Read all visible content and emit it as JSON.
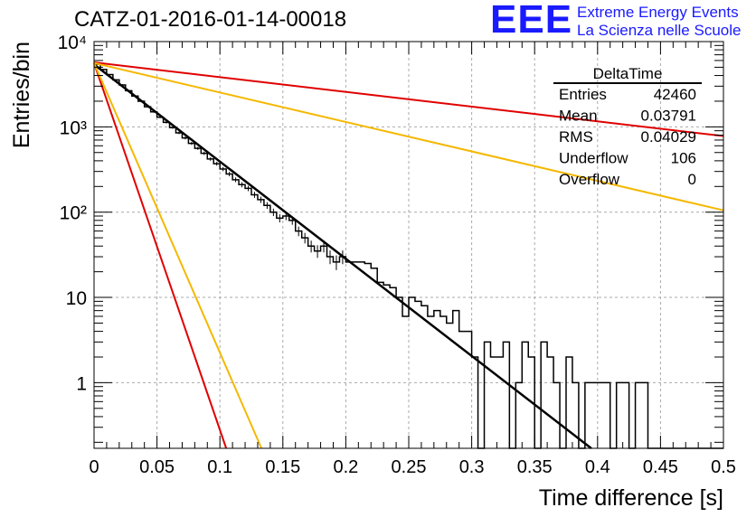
{
  "header": {
    "title": "CATZ-01-2016-01-14-00018"
  },
  "logo": {
    "mark": "EEE",
    "line1": "Extreme Energy Events",
    "line2": "La Scienza nelle Scuole",
    "color": "#1a1aff"
  },
  "stats": {
    "title": "DeltaTime",
    "rows": [
      {
        "label": "Entries",
        "value": "42460"
      },
      {
        "label": "Mean",
        "value": "0.03791"
      },
      {
        "label": "RMS",
        "value": "0.04029"
      },
      {
        "label": "Underflow",
        "value": "106"
      },
      {
        "label": "Overflow",
        "value": "0"
      }
    ]
  },
  "chart_data": {
    "type": "line",
    "title": "CATZ-01-2016-01-14-00018",
    "xlabel": "Time difference [s]",
    "ylabel": "Entries/bin",
    "xlim": [
      0,
      0.5
    ],
    "ylim": [
      0.17,
      10000
    ],
    "yscale": "log",
    "grid": true,
    "x_ticks": [
      "0",
      "0.05",
      "0.1",
      "0.15",
      "0.2",
      "0.25",
      "0.3",
      "0.35",
      "0.4",
      "0.45",
      "0.5"
    ],
    "y_ticks": [
      {
        "value": 1,
        "label": "1"
      },
      {
        "value": 10,
        "label": "10"
      },
      {
        "value": 100,
        "label": "10²"
      },
      {
        "value": 1000,
        "label": "10³"
      },
      {
        "value": 10000,
        "label": "10⁴"
      }
    ],
    "histogram": {
      "name": "DeltaTime",
      "color": "#000000",
      "bin_width": 0.005,
      "values": [
        5400,
        4700,
        4100,
        3550,
        3100,
        2650,
        2300,
        2000,
        1720,
        1500,
        1300,
        1130,
        980,
        850,
        740,
        640,
        560,
        490,
        420,
        370,
        320,
        280,
        240,
        210,
        190,
        160,
        140,
        120,
        100,
        85,
        90,
        80,
        60,
        50,
        40,
        35,
        40,
        30,
        26,
        30,
        26,
        26,
        26,
        25,
        22,
        15,
        14,
        13,
        10,
        6,
        10,
        9,
        8,
        6,
        7,
        6,
        5,
        7,
        4,
        4,
        2,
        0.1,
        3,
        2,
        2,
        3,
        0.1,
        1,
        3,
        2,
        0.1,
        3,
        2,
        1,
        0.1,
        2,
        1,
        0.1,
        1,
        1,
        1,
        1,
        0.1,
        1,
        1,
        0.1,
        1,
        1,
        0.1,
        0.1,
        0.1,
        0.1,
        0.1,
        0.1,
        0.1,
        0.1,
        0.1,
        0.1,
        0.1,
        0.1
      ]
    },
    "curves": [
      {
        "color": "#000000",
        "x": [
          0,
          0.395
        ],
        "y": [
          5400,
          0.17
        ]
      },
      {
        "color": "#e00000",
        "x": [
          0,
          0.5
        ],
        "y": [
          5700,
          780
        ]
      },
      {
        "color": "#f5b800",
        "x": [
          0,
          0.5
        ],
        "y": [
          5600,
          105
        ]
      },
      {
        "color": "#e00000",
        "x": [
          0,
          0.105
        ],
        "y": [
          5600,
          0.17
        ]
      },
      {
        "color": "#f5b800",
        "x": [
          0,
          0.133
        ],
        "y": [
          5600,
          0.17
        ]
      }
    ]
  }
}
